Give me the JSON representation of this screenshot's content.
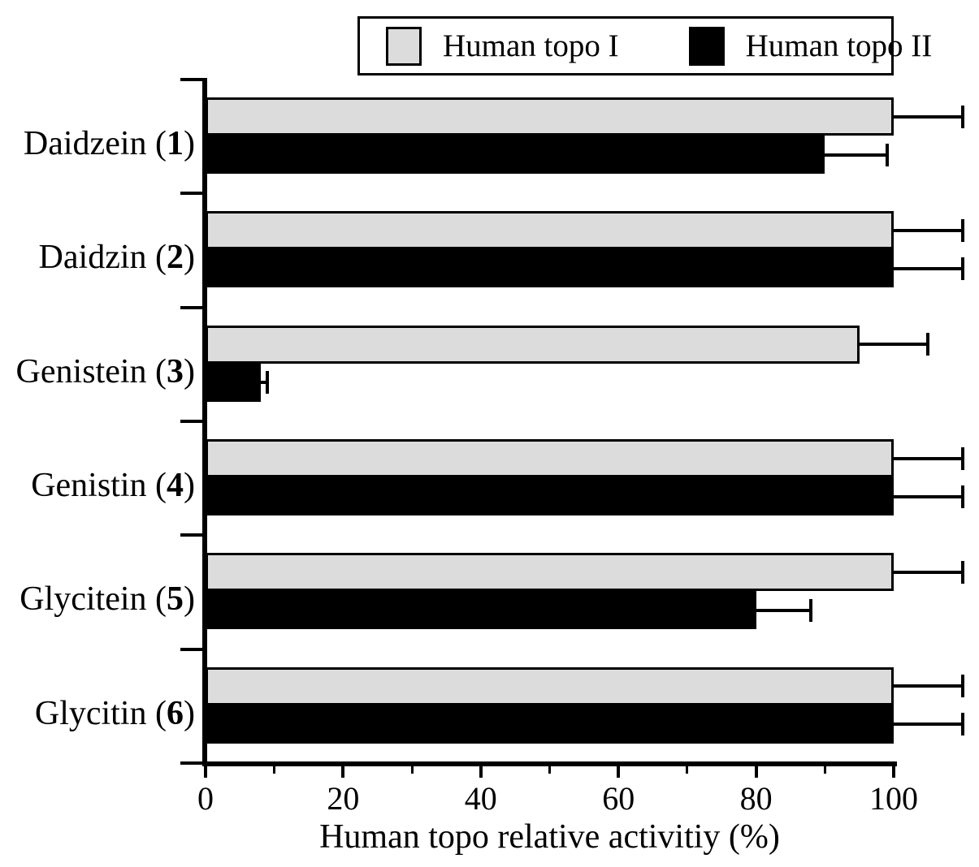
{
  "figure": {
    "background": "#ffffff",
    "ink_color": "#000000"
  },
  "chart_data": {
    "type": "bar",
    "orientation": "horizontal",
    "title": "",
    "xlabel": "Human topo relative activitiy (%)",
    "ylabel": "",
    "xlim": [
      0,
      100
    ],
    "xticks": [
      0,
      20,
      40,
      60,
      80,
      100
    ],
    "minor_xticks": [
      10,
      30,
      50,
      70,
      90
    ],
    "grid": false,
    "legend_position": "top",
    "categories": [
      {
        "name": "Daidzein",
        "num": "1"
      },
      {
        "name": "Daidzin",
        "num": "2"
      },
      {
        "name": "Genistein",
        "num": "3"
      },
      {
        "name": "Genistin",
        "num": "4"
      },
      {
        "name": "Glycitein",
        "num": "5"
      },
      {
        "name": "Glycitin",
        "num": "6"
      }
    ],
    "series": [
      {
        "name": "Human topo I",
        "color": "#dcdcdc",
        "values": [
          100,
          100,
          95,
          100,
          100,
          100
        ],
        "errors": [
          10,
          10,
          10,
          10,
          10,
          10
        ]
      },
      {
        "name": "Human topo II",
        "color": "#000000",
        "values": [
          90,
          100,
          8,
          100,
          80,
          100
        ],
        "errors": [
          9,
          10,
          1,
          10,
          8,
          10
        ]
      }
    ]
  }
}
